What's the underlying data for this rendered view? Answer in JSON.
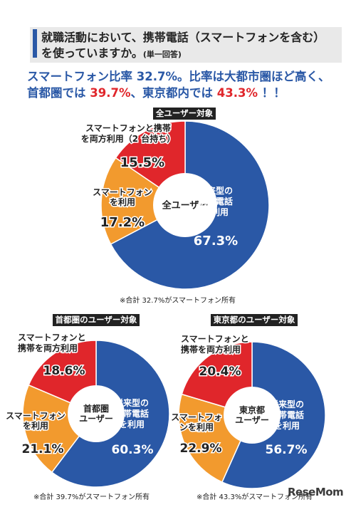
{
  "question": {
    "line1": "就職活動において、携帯電話（スマートフォンを含む）",
    "line2": "を使っていますか。",
    "sub": "(単一回答)"
  },
  "headline": {
    "part1": "スマートフォン比率 32.7%。比率は大都市圏ほど高く、",
    "part2": "首都圏では ",
    "red1": "39.7%",
    "part3": "、東京都内では ",
    "red2": "43.3%",
    "part4": " ！！"
  },
  "colors": {
    "blue": "#2a58a6",
    "orange": "#f29a2e",
    "red": "#e0262b"
  },
  "chart_data": [
    {
      "type": "pie",
      "title": "全ユーザー対象",
      "center_label": [
        "全ユーザー"
      ],
      "note": "※合計 32.7%がスマートフォン所有",
      "slices": [
        {
          "label": [
            "従来型の",
            "携帯電話",
            "を利用"
          ],
          "value": 67.3,
          "display": "67.3%"
        },
        {
          "label": [
            "スマートフォン",
            "を利用"
          ],
          "value": 17.2,
          "display": "17.2%"
        },
        {
          "label": [
            "スマートフォンと携帯",
            "を両方利用（2 台持ち）"
          ],
          "value": 15.5,
          "display": "15.5%"
        }
      ]
    },
    {
      "type": "pie",
      "title": "首都圏のユーザー対象",
      "center_label": [
        "首都圏",
        "ユーザー"
      ],
      "note": "※合計 39.7%がスマートフォン所有",
      "slices": [
        {
          "label": [
            "従来型の",
            "携帯電話",
            "を利用"
          ],
          "value": 60.3,
          "display": "60.3%"
        },
        {
          "label": [
            "スマートフォン",
            "を利用"
          ],
          "value": 21.1,
          "display": "21.1%"
        },
        {
          "label": [
            "スマートフォンと",
            "携帯を両方利用"
          ],
          "value": 18.6,
          "display": "18.6%"
        }
      ]
    },
    {
      "type": "pie",
      "title": "東京都のユーザー対象",
      "center_label": [
        "東京都",
        "ユーザー"
      ],
      "note": "※合計 43.3%がスマートフォン所有",
      "slices": [
        {
          "label": [
            "従来型の",
            "携帯電話",
            "を利用"
          ],
          "value": 56.7,
          "display": "56.7%"
        },
        {
          "label": [
            "スマートフォ",
            "ンを利用"
          ],
          "value": 22.9,
          "display": "22.9%"
        },
        {
          "label": [
            "スマートフォンと",
            "携帯を両方利用"
          ],
          "value": 20.4,
          "display": "20.4%"
        }
      ]
    }
  ],
  "watermark": {
    "text": "ReseMom"
  }
}
